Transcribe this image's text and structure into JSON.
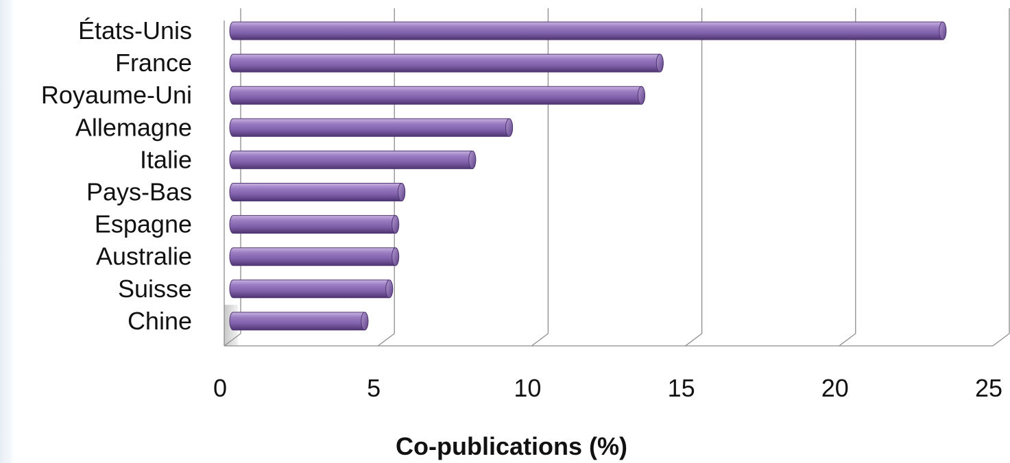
{
  "chart_data": {
    "type": "bar",
    "orientation": "horizontal",
    "style": "3d-cylinder",
    "categories": [
      "États-Unis",
      "France",
      "Royaume-Uni",
      "Allemagne",
      "Italie",
      "Pays-Bas",
      "Espagne",
      "Australie",
      "Suisse",
      "Chine"
    ],
    "values": [
      23.1,
      13.9,
      13.3,
      9.0,
      7.8,
      5.5,
      5.3,
      5.3,
      5.1,
      4.3
    ],
    "xlabel": "Co-publications (%)",
    "ylabel": "",
    "title": "",
    "xlim": [
      0,
      25
    ],
    "xticks": [
      "0",
      "5",
      "10",
      "15",
      "20",
      "25"
    ],
    "grid": "vertical",
    "bar_color": "#8a6bb0"
  }
}
